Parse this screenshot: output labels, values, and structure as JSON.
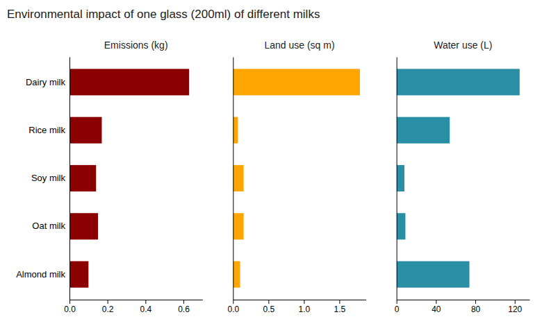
{
  "title": "Environmental impact of one glass (200ml) of different milks",
  "chart_data": [
    {
      "type": "bar",
      "orientation": "horizontal",
      "title": "Emissions (kg)",
      "categories": [
        "Dairy milk",
        "Rice milk",
        "Soy milk",
        "Oat milk",
        "Almond milk"
      ],
      "values": [
        0.63,
        0.17,
        0.14,
        0.15,
        0.1
      ],
      "color": "#8B0000",
      "xlim": [
        0,
        0.7
      ],
      "xticks": [
        {
          "value": 0.0,
          "label": "0.0"
        },
        0.2,
        0.4,
        0.6
      ]
    },
    {
      "type": "bar",
      "orientation": "horizontal",
      "title": "Land use (sq m)",
      "categories": [
        "Dairy milk",
        "Rice milk",
        "Soy milk",
        "Oat milk",
        "Almond milk"
      ],
      "values": [
        1.79,
        0.07,
        0.15,
        0.15,
        0.1
      ],
      "color": "#FFA500",
      "xlim": [
        0,
        1.875
      ],
      "xticks": [
        {
          "value": 0.0,
          "label": "0.0"
        },
        0.5,
        {
          "value": 1.0,
          "label": "1.0"
        },
        1.5
      ],
      "tick_labels": "x"
    },
    {
      "type": "bar",
      "orientation": "horizontal",
      "title": "Water use (L)",
      "categories": [
        "Dairy milk",
        "Rice milk",
        "Soy milk",
        "Oat milk",
        "Almond milk"
      ],
      "values": [
        125,
        54,
        8,
        9,
        74
      ],
      "color": "#2A8FA5",
      "xlim": [
        0,
        135
      ],
      "xticks": [
        0,
        40,
        80,
        120
      ],
      "tick_labels": "x"
    }
  ]
}
